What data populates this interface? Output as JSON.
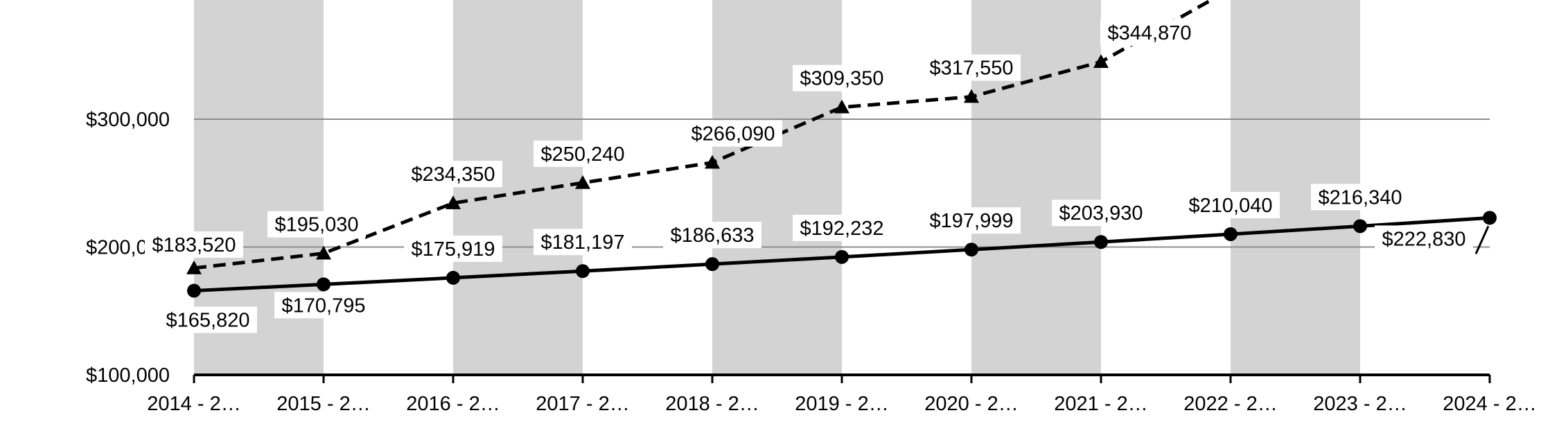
{
  "chart_data": {
    "type": "line",
    "x_categories": [
      "2014 - 2…",
      "2015 - 2…",
      "2016 - 2…",
      "2017 - 2…",
      "2018 - 2…",
      "2019 - 2…",
      "2020 - 2…",
      "2021 - 2…",
      "2022 - 2…",
      "2023 - 2…",
      "2024 - 2…"
    ],
    "y_ticks": [
      "$100,000",
      "$200,000",
      "$300,000"
    ],
    "y_tick_values": [
      100000,
      200000,
      300000
    ],
    "ylim": [
      100000,
      400000
    ],
    "gridlines": "horizontal",
    "background_bands": "alternating gray columns",
    "series": [
      {
        "style": "dashed",
        "marker": "triangle",
        "values": [
          183520,
          195030,
          234350,
          250240,
          266090,
          309350,
          317550,
          344870,
          null,
          null,
          null
        ],
        "labels": [
          "$183,520",
          "$195,030",
          "$234,350",
          "$250,240",
          "$266,090",
          "$309,350",
          "$317,550",
          "$344,870",
          null,
          null,
          null
        ],
        "trend_continues_above_view": true
      },
      {
        "style": "solid",
        "marker": "circle",
        "values": [
          165820,
          170795,
          175919,
          181197,
          186633,
          192232,
          197999,
          203930,
          210040,
          216340,
          222830
        ],
        "labels": [
          "$165,820",
          "$170,795",
          "$175,919",
          "$181,197",
          "$186,633",
          "$192,232",
          "$197,999",
          "$203,930",
          "$210,040",
          "$216,340",
          "$222,830"
        ]
      }
    ],
    "colors": {
      "band": "#d3d3d3",
      "line": "#000000",
      "grid": "#8c8c8c"
    }
  }
}
